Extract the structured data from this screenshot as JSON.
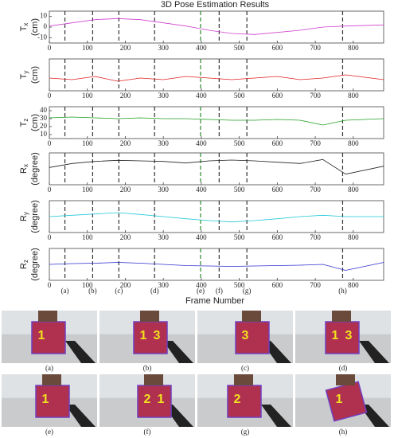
{
  "figure": {
    "title": "3D Pose Estimation Results",
    "xlabel": "Frame Number",
    "events": [
      {
        "label": "(a)",
        "frame": 41
      },
      {
        "label": "(b)",
        "frame": 114
      },
      {
        "label": "(c)",
        "frame": 183
      },
      {
        "label": "(d)",
        "frame": 277
      },
      {
        "label": "(e)",
        "frame": 398
      },
      {
        "label": "(f)",
        "frame": 447
      },
      {
        "label": "(g)",
        "frame": 520
      },
      {
        "label": "(h)",
        "frame": 772
      }
    ]
  },
  "chart_data": [
    {
      "type": "line",
      "ylabel": "T",
      "ylabel_sub": "x",
      "ylabel_unit": "(cm)",
      "xlim": [
        0,
        880
      ],
      "xticks": [
        0,
        100,
        200,
        300,
        400,
        500,
        600,
        700,
        800
      ],
      "ylim": [
        -15,
        15
      ],
      "yticks": [
        -10,
        0,
        10
      ],
      "x": [
        0,
        60,
        120,
        180,
        240,
        300,
        360,
        420,
        480,
        540,
        600,
        660,
        720,
        780,
        880
      ],
      "series": [
        {
          "color": "#d040d0",
          "values": [
            1,
            4,
            7,
            8,
            7,
            4,
            1,
            -3,
            -6,
            -7,
            -5,
            -3,
            0,
            1,
            2
          ]
        }
      ]
    },
    {
      "type": "line",
      "ylabel": "T",
      "ylabel_sub": "y",
      "ylabel_unit": "(cm)",
      "xlim": [
        0,
        880
      ],
      "xticks": [
        0,
        100,
        200,
        300,
        400,
        500,
        600,
        700,
        800
      ],
      "ylim": [
        -10,
        10
      ],
      "yticks": [],
      "x": [
        0,
        60,
        120,
        180,
        240,
        300,
        360,
        420,
        480,
        540,
        600,
        660,
        720,
        780,
        880
      ],
      "series": [
        {
          "color": "#e02020",
          "values": [
            -2,
            -3,
            -1,
            -4,
            -2,
            -3,
            -1,
            -2,
            -3,
            -2,
            -1,
            -3,
            -2,
            0,
            -3
          ]
        }
      ]
    },
    {
      "type": "line",
      "ylabel": "T",
      "ylabel_sub": "z",
      "ylabel_unit": "(cm)",
      "xlim": [
        0,
        880
      ],
      "xticks": [
        0,
        100,
        200,
        300,
        400,
        500,
        600,
        700,
        800
      ],
      "ylim": [
        5,
        45
      ],
      "yticks": [
        10,
        20,
        30,
        40
      ],
      "x": [
        0,
        60,
        120,
        180,
        240,
        300,
        360,
        420,
        480,
        540,
        600,
        660,
        720,
        780,
        880
      ],
      "series": [
        {
          "color": "#20a020",
          "values": [
            31,
            32,
            31,
            30,
            31,
            30,
            30,
            29,
            28,
            28,
            29,
            28,
            22,
            28,
            30
          ]
        }
      ]
    },
    {
      "type": "line",
      "ylabel": "R",
      "ylabel_sub": "x",
      "ylabel_unit": "(degree)",
      "xlim": [
        0,
        880
      ],
      "xticks": [
        0,
        100,
        200,
        300,
        400,
        500,
        600,
        700,
        800
      ],
      "ylim": [
        -60,
        60
      ],
      "yticks": [],
      "x": [
        0,
        60,
        120,
        180,
        240,
        300,
        360,
        420,
        480,
        540,
        600,
        660,
        720,
        780,
        880
      ],
      "series": [
        {
          "color": "#202020",
          "values": [
            5,
            20,
            28,
            32,
            30,
            28,
            22,
            30,
            33,
            30,
            25,
            20,
            35,
            -20,
            10
          ]
        }
      ]
    },
    {
      "type": "line",
      "ylabel": "R",
      "ylabel_sub": "y",
      "ylabel_unit": "(degree)",
      "xlim": [
        0,
        880
      ],
      "xticks": [
        0,
        100,
        200,
        300,
        400,
        500,
        600,
        700,
        800
      ],
      "ylim": [
        -60,
        60
      ],
      "yticks": [],
      "x": [
        0,
        60,
        120,
        180,
        240,
        300,
        360,
        420,
        480,
        540,
        600,
        660,
        720,
        780,
        880
      ],
      "series": [
        {
          "color": "#20c8d8",
          "values": [
            0,
            5,
            10,
            15,
            8,
            0,
            -8,
            -15,
            -20,
            -15,
            -8,
            0,
            5,
            0,
            0
          ]
        }
      ]
    },
    {
      "type": "line",
      "ylabel": "R",
      "ylabel_sub": "z",
      "ylabel_unit": "(degree)",
      "xlim": [
        0,
        880
      ],
      "xticks": [
        0,
        100,
        200,
        300,
        400,
        500,
        600,
        700,
        800
      ],
      "ylim": [
        -40,
        40
      ],
      "yticks": [],
      "x": [
        0,
        60,
        120,
        180,
        240,
        300,
        360,
        420,
        480,
        540,
        600,
        660,
        720,
        780,
        880
      ],
      "series": [
        {
          "color": "#3030d0",
          "values": [
            0,
            2,
            3,
            5,
            3,
            0,
            -3,
            -4,
            -5,
            -4,
            -3,
            -2,
            0,
            -15,
            5
          ]
        }
      ]
    }
  ],
  "panels": [
    {
      "caption": "(a)",
      "labels": [
        "1"
      ]
    },
    {
      "caption": "(b)",
      "labels": [
        "1",
        "3"
      ]
    },
    {
      "caption": "(c)",
      "labels": [
        "3"
      ]
    },
    {
      "caption": "(d)",
      "labels": [
        "1",
        "3"
      ]
    },
    {
      "caption": "(e)",
      "labels": [
        "1"
      ]
    },
    {
      "caption": "(f)",
      "labels": [
        "2",
        "1"
      ]
    },
    {
      "caption": "(g)",
      "labels": [
        "2"
      ]
    },
    {
      "caption": "(h)",
      "labels": [
        "1"
      ]
    }
  ]
}
